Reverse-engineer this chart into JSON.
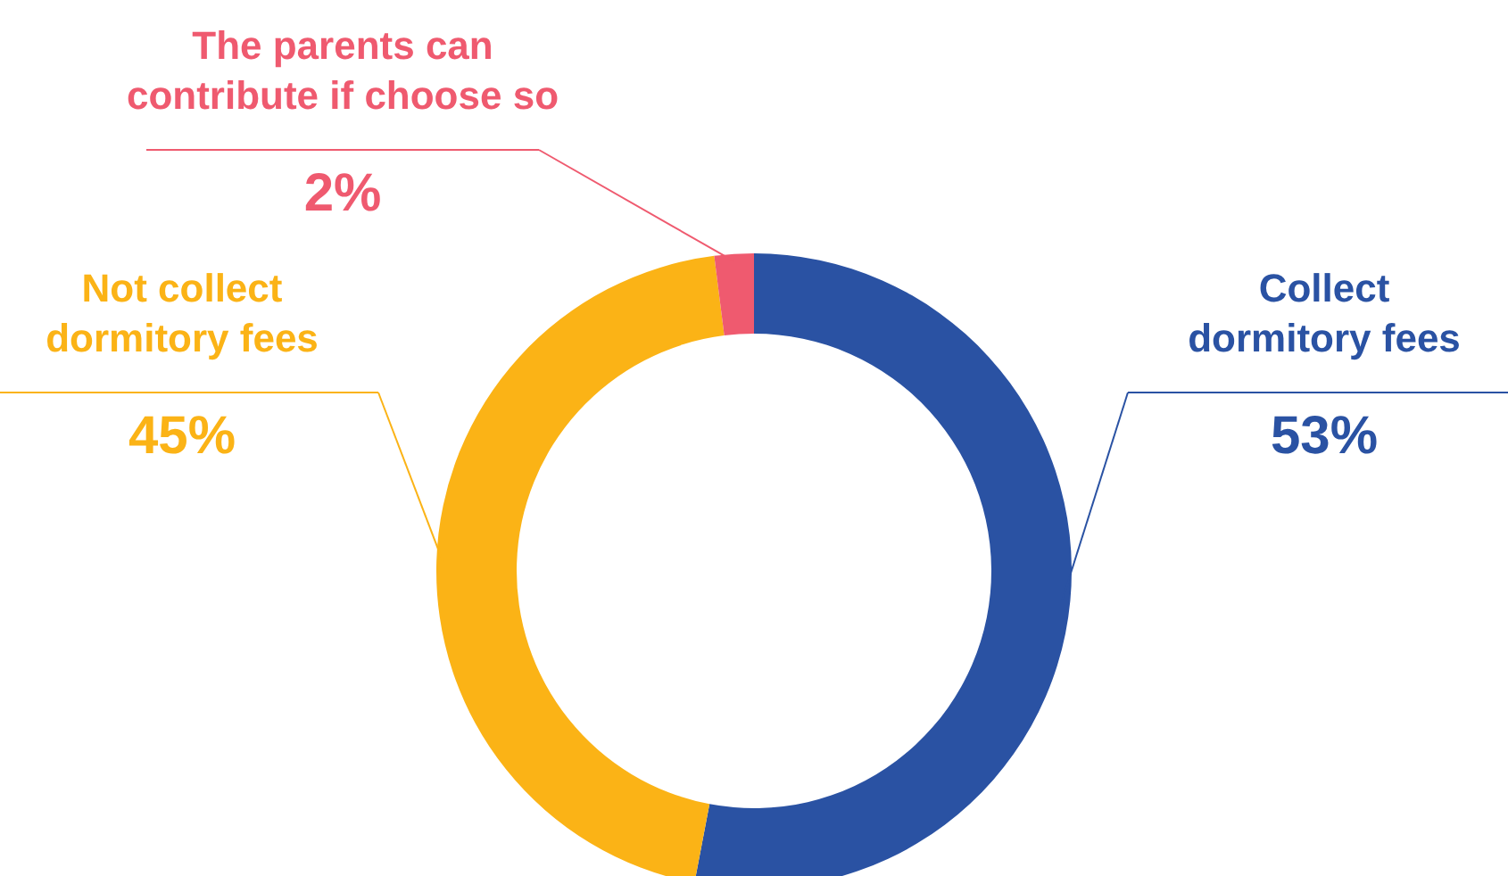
{
  "chart_data": {
    "type": "donut",
    "categories": [
      "Collect dormitory fees",
      "Not collect dormitory fees",
      "The parents can contribute if choose so"
    ],
    "values": [
      53,
      45,
      2
    ],
    "colors": [
      "#2a52a3",
      "#fbb316",
      "#ef5a6f"
    ],
    "value_labels": [
      "53%",
      "45%",
      "2%"
    ]
  }
}
